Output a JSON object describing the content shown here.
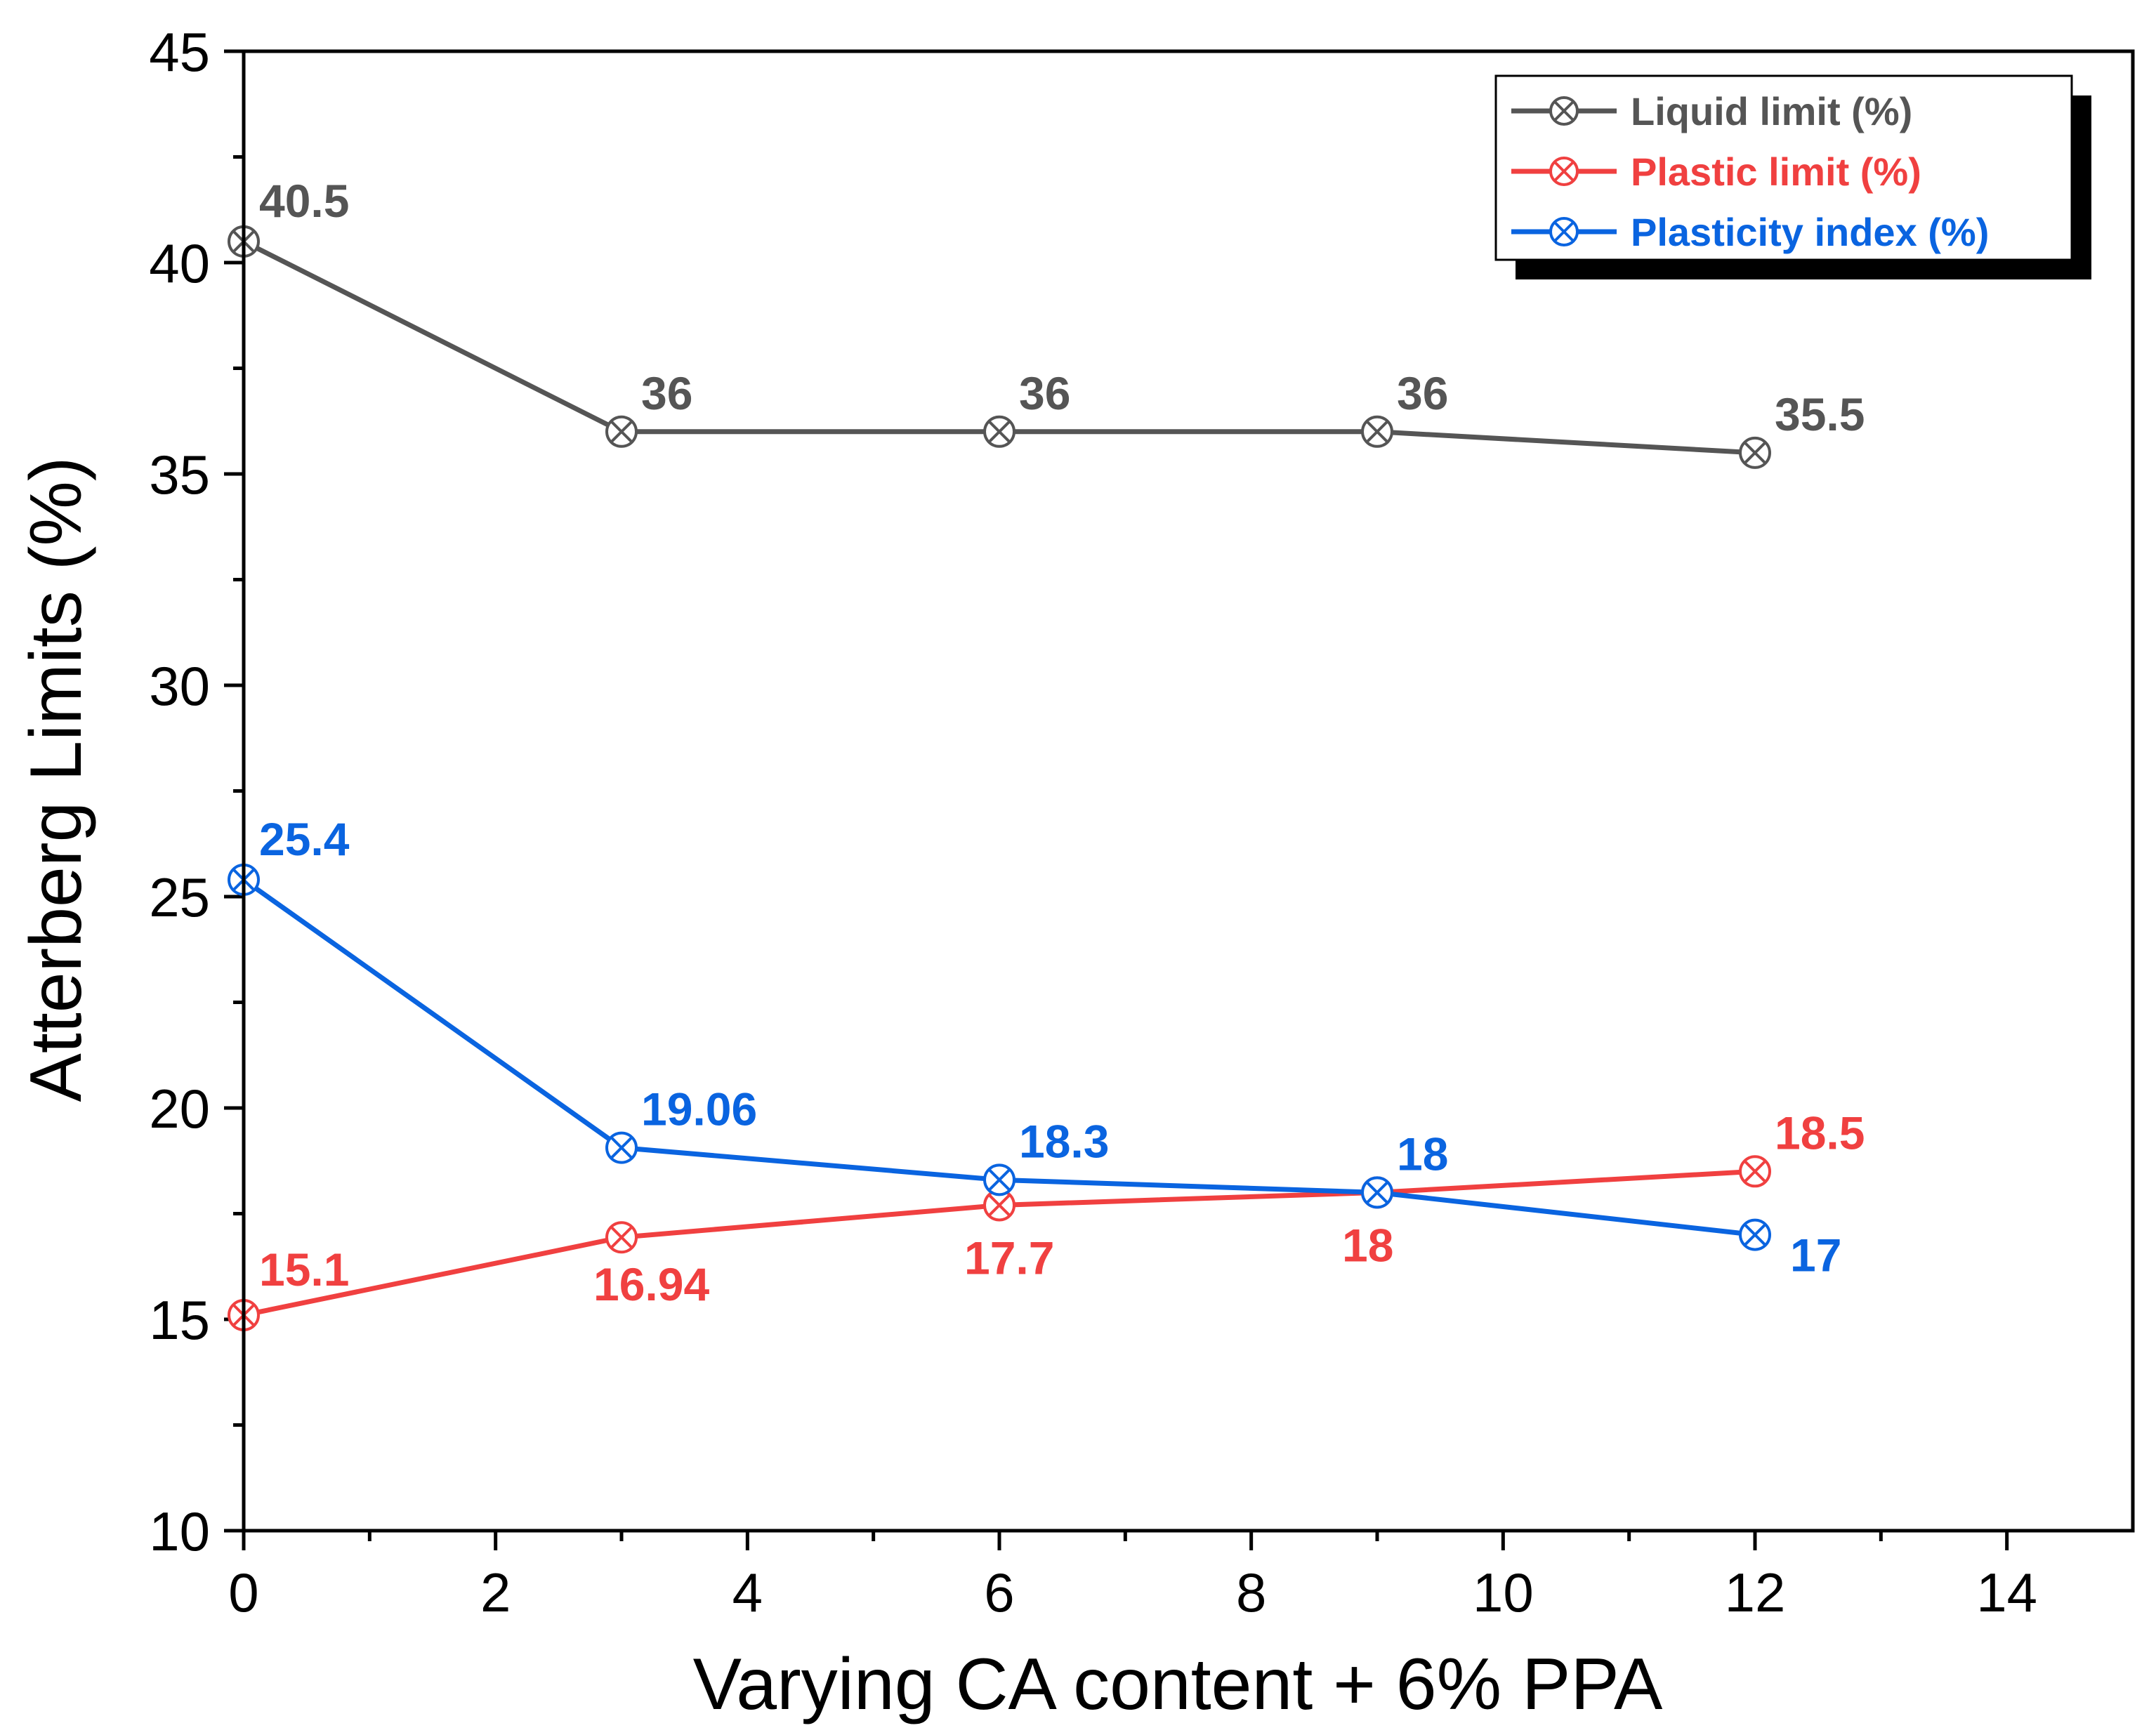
{
  "chart_data": {
    "type": "line",
    "title": "",
    "xlabel": "Varying CA content + 6% PPA",
    "ylabel": "Atterberg Limits (%)",
    "xlim": [
      0,
      15
    ],
    "ylim": [
      10,
      45
    ],
    "xticks": [
      0,
      2,
      4,
      6,
      8,
      10,
      12,
      14
    ],
    "yticks": [
      10,
      15,
      20,
      25,
      30,
      35,
      40,
      45
    ],
    "x": [
      0,
      3,
      6,
      9,
      12
    ],
    "legend_position": "top-right",
    "grid": false,
    "series": [
      {
        "name": "Liquid limit (%)",
        "color": "#555555",
        "values": [
          40.5,
          36,
          36,
          36,
          35.5
        ],
        "labels": [
          "40.5",
          "36",
          "36",
          "36",
          "35.5"
        ]
      },
      {
        "name": "Plastic limit (%)",
        "color": "#f04040",
        "values": [
          15.1,
          16.94,
          17.7,
          18,
          18.5
        ],
        "labels": [
          "15.1",
          "16.94",
          "17.7",
          "18",
          "18.5"
        ]
      },
      {
        "name": "Plasticity index (%)",
        "color": "#0a64e0",
        "values": [
          25.4,
          19.06,
          18.3,
          18,
          17
        ],
        "labels": [
          "25.4",
          "19.06",
          "18.3",
          "18",
          "17"
        ]
      }
    ]
  }
}
